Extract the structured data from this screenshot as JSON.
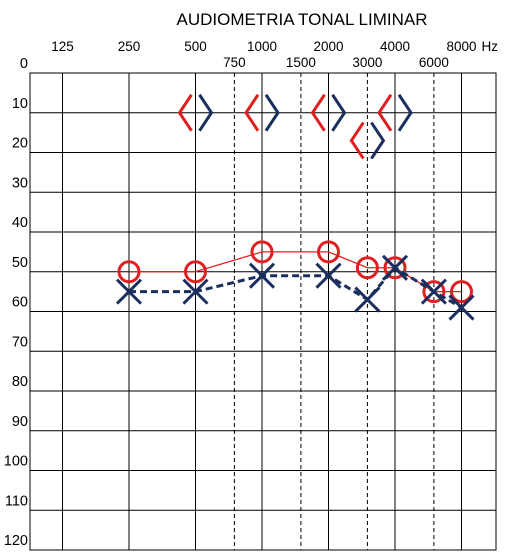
{
  "chart_data": {
    "type": "line",
    "title": "AUDIOMETRIA TONAL LIMINAR",
    "x_unit": "Hz",
    "x_ticks_octave": [
      "125",
      "250",
      "500",
      "1000",
      "2000",
      "4000",
      "8000"
    ],
    "x_ticks_mid": [
      "750",
      "1500",
      "3000",
      "6000"
    ],
    "y_ticks": [
      0,
      10,
      20,
      30,
      40,
      50,
      60,
      70,
      80,
      90,
      100,
      110,
      120
    ],
    "ylim": [
      0,
      120
    ],
    "y_inverted": true,
    "grid": true,
    "series": [
      {
        "marker": "circle",
        "line_style": "solid",
        "color": "#e02020",
        "points": [
          [
            250,
            50
          ],
          [
            500,
            50
          ],
          [
            1000,
            45
          ],
          [
            2000,
            45
          ],
          [
            3000,
            49
          ],
          [
            4000,
            49
          ],
          [
            6000,
            55
          ],
          [
            8000,
            55
          ]
        ]
      },
      {
        "marker": "x",
        "line_style": "dashed",
        "color": "#1b2f5e",
        "points": [
          [
            250,
            55
          ],
          [
            500,
            55
          ],
          [
            1000,
            51
          ],
          [
            2000,
            51
          ],
          [
            3000,
            57
          ],
          [
            4000,
            49
          ],
          [
            6000,
            55
          ],
          [
            8000,
            59
          ]
        ]
      },
      {
        "marker": "bracket-left",
        "line_style": "none",
        "color": "#e02020",
        "points": [
          [
            500,
            10
          ],
          [
            1000,
            10
          ],
          [
            2000,
            10
          ],
          [
            3000,
            17
          ],
          [
            4000,
            10
          ]
        ]
      },
      {
        "marker": "bracket-right",
        "line_style": "none",
        "color": "#1b2f5e",
        "points": [
          [
            500,
            10
          ],
          [
            1000,
            10
          ],
          [
            2000,
            10
          ],
          [
            3000,
            17
          ],
          [
            4000,
            10
          ]
        ]
      }
    ]
  }
}
